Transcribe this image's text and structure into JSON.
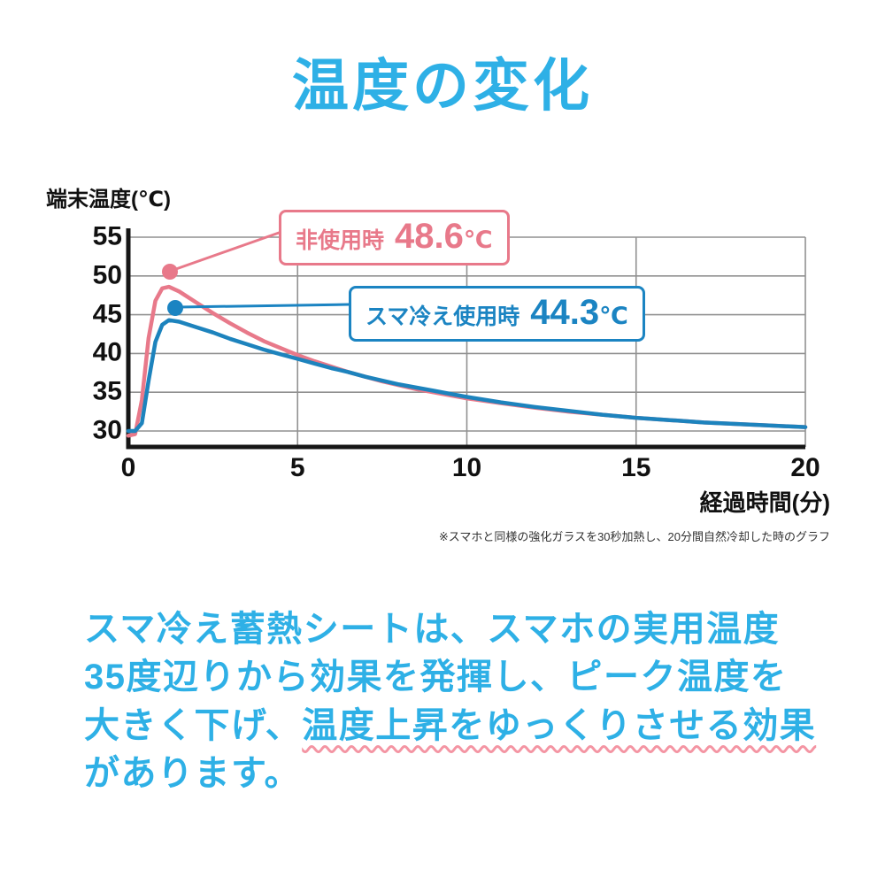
{
  "chart_data": {
    "type": "line",
    "title": "温度の変化",
    "ylabel": "端末温度(℃)",
    "xlabel": "経過時間(分)",
    "footnote": "※スマホと同様の強化ガラスを30秒加熱し、20分間自然冷却した時のグラフ",
    "xlim": [
      0,
      20
    ],
    "ylim": [
      28.5,
      57
    ],
    "yticks": [
      30,
      35,
      40,
      45,
      50,
      55
    ],
    "xticks": [
      0,
      5,
      10,
      15,
      20
    ],
    "grid": true,
    "legend_position": "callout-boxes",
    "series": [
      {
        "name": "非使用時",
        "peak": 48.6,
        "color": "#e8798a",
        "x": [
          0,
          0.2,
          0.4,
          0.6,
          0.8,
          1.0,
          1.2,
          1.5,
          2.0,
          2.5,
          3.0,
          3.5,
          4.0,
          4.5,
          5.0,
          5.5,
          6.0,
          6.5,
          7.0,
          7.5,
          8.0,
          8.5,
          9.0,
          9.5,
          10,
          11,
          12,
          13,
          14,
          15,
          16,
          17,
          18,
          19,
          20
        ],
        "y": [
          29.4,
          29.6,
          34,
          42,
          46.8,
          48.4,
          48.6,
          48.0,
          46.6,
          45.2,
          43.9,
          42.7,
          41.6,
          40.7,
          39.8,
          39.0,
          38.3,
          37.6,
          37.0,
          36.4,
          35.9,
          35.4,
          35.0,
          34.6,
          34.2,
          33.6,
          33.0,
          32.5,
          32.1,
          31.7,
          31.4,
          31.1,
          30.9,
          30.7,
          30.5
        ]
      },
      {
        "name": "スマ冷え使用時",
        "peak": 44.3,
        "color": "#1d83bd",
        "x": [
          0,
          0.2,
          0.4,
          0.6,
          0.8,
          1.0,
          1.2,
          1.5,
          2.0,
          2.5,
          3.0,
          3.5,
          4.0,
          4.5,
          5.0,
          5.5,
          6.0,
          6.5,
          7.0,
          7.5,
          8.0,
          8.5,
          9.0,
          9.5,
          10,
          11,
          12,
          13,
          14,
          15,
          16,
          17,
          18,
          19,
          20
        ],
        "y": [
          30.0,
          30.0,
          31.0,
          36.5,
          41.5,
          43.7,
          44.3,
          44.1,
          43.4,
          42.7,
          41.9,
          41.2,
          40.5,
          39.9,
          39.3,
          38.7,
          38.1,
          37.6,
          37.0,
          36.5,
          36.0,
          35.6,
          35.2,
          34.8,
          34.4,
          33.7,
          33.1,
          32.6,
          32.1,
          31.7,
          31.4,
          31.1,
          30.9,
          30.7,
          30.5
        ]
      }
    ],
    "annotations": [
      {
        "label": "非使用時",
        "value": "48.6",
        "unit": "℃",
        "color": "#e8798a"
      },
      {
        "label": "スマ冷え使用時",
        "value": "44.3",
        "unit": "℃",
        "color": "#1b84c2"
      }
    ]
  },
  "body_text": {
    "line1": "スマ冷え蓄熱シートは、スマホの実用温度",
    "line2": "35度辺りから効果を発揮し、ピーク温度を",
    "line3_prefix": "大きく下げ、",
    "line3_wavy": "温度上昇をゆっくりさせる効果",
    "line4": "があります。"
  }
}
